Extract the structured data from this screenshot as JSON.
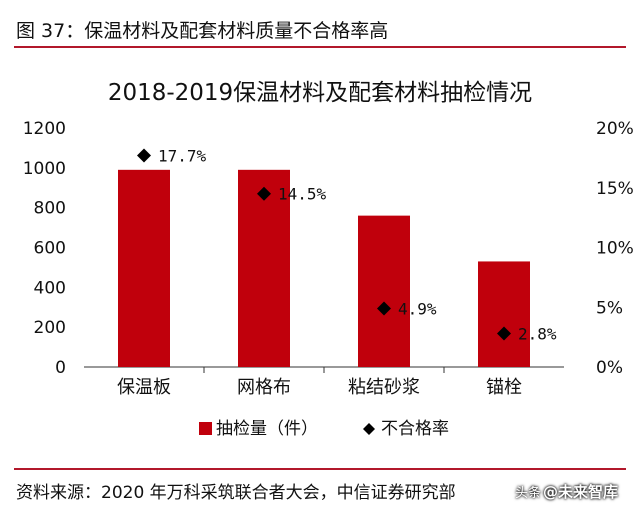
{
  "figure": {
    "title": "图 37：保温材料及配套材料质量不合格率高",
    "source": "资料来源：2020 年万科采筑联合者大会，中信证券研究部",
    "watermark": "@未来智库",
    "watermark_prefix": "头条"
  },
  "colors": {
    "bar": "#c0000c",
    "marker": "#000000",
    "rule": "#b2182b"
  },
  "chart_data": {
    "type": "bar",
    "title": "2018-2019保温材料及配套材料抽检情况",
    "categories": [
      "保温板",
      "网格布",
      "粘结砂浆",
      "锚栓"
    ],
    "series": [
      {
        "name": "抽检量（件）",
        "type": "bar",
        "axis": "left",
        "values": [
          990,
          990,
          760,
          530
        ]
      },
      {
        "name": "不合格率",
        "type": "scatter",
        "marker": "diamond",
        "axis": "right",
        "values": [
          17.7,
          14.5,
          4.9,
          2.8
        ],
        "labels": [
          "17.7%",
          "14.5%",
          "4.9%",
          "2.8%"
        ]
      }
    ],
    "y_left": {
      "min": 0,
      "max": 1200,
      "ticks": [
        0,
        200,
        400,
        600,
        800,
        1000,
        1200
      ]
    },
    "y_right": {
      "min": 0,
      "max": 20,
      "ticks": [
        "0%",
        "5%",
        "10%",
        "15%",
        "20%"
      ]
    },
    "legend": {
      "position": "bottom",
      "items": [
        "抽检量（件）",
        "不合格率"
      ]
    },
    "grid": false
  }
}
